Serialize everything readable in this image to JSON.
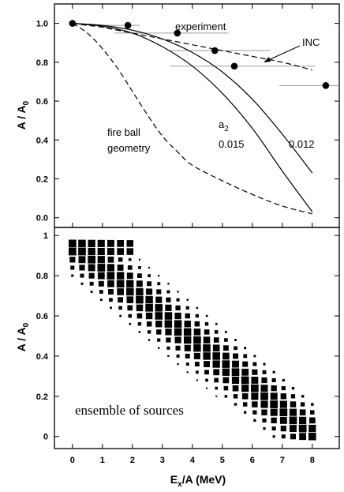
{
  "chart_data": [
    {
      "type": "line",
      "panel": "top",
      "xlim": [
        -0.6,
        8.9
      ],
      "ylim": [
        -0.05,
        1.1
      ],
      "yticks": [
        "0.0",
        "0.2",
        "0.4",
        "0.6",
        "0.8",
        "1.0"
      ],
      "y_axis_label": {
        "main": "A / A",
        "sub": "0"
      },
      "experiment": {
        "label": "experiment",
        "points": [
          {
            "x": 0.0,
            "y": 1.0,
            "xerr": [
              0.0,
              0.0
            ]
          },
          {
            "x": 1.85,
            "y": 0.99,
            "xerr": [
              0.8,
              2.25
            ]
          },
          {
            "x": 3.5,
            "y": 0.95,
            "xerr": [
              1.4,
              5.2
            ]
          },
          {
            "x": 4.75,
            "y": 0.86,
            "xerr": [
              3.25,
              6.6
            ]
          },
          {
            "x": 5.4,
            "y": 0.78,
            "xerr": [
              3.25,
              8.1
            ]
          },
          {
            "x": 8.45,
            "y": 0.68,
            "xerr": [
              6.9,
              8.9
            ]
          }
        ]
      },
      "series": [
        {
          "style": "dashed",
          "label": "INC",
          "x": [
            0,
            0.5,
            1,
            2,
            3,
            4,
            5,
            6,
            7,
            8
          ],
          "y": [
            1.0,
            0.99,
            0.98,
            0.95,
            0.92,
            0.89,
            0.86,
            0.83,
            0.8,
            0.76
          ]
        },
        {
          "style": "solid",
          "label": "0.012",
          "x": [
            0,
            1,
            2,
            3,
            4,
            5,
            6,
            7,
            8
          ],
          "y": [
            1.0,
            0.99,
            0.965,
            0.92,
            0.85,
            0.75,
            0.61,
            0.43,
            0.23
          ]
        },
        {
          "style": "solid",
          "label": "0.015",
          "x": [
            0,
            1,
            2,
            3,
            4,
            5,
            6,
            7,
            8
          ],
          "y": [
            1.0,
            0.985,
            0.95,
            0.88,
            0.78,
            0.64,
            0.46,
            0.24,
            0.03
          ]
        },
        {
          "style": "dashed",
          "label": "fire ball geometry",
          "x": [
            0,
            0.5,
            1,
            1.5,
            2,
            2.5,
            3,
            3.5,
            4,
            5,
            6,
            7,
            8
          ],
          "y": [
            1.0,
            0.95,
            0.87,
            0.77,
            0.65,
            0.53,
            0.42,
            0.34,
            0.27,
            0.19,
            0.12,
            0.06,
            0.02
          ]
        }
      ],
      "annotations": {
        "experiment": "experiment",
        "inc": "INC",
        "a2_main": "a",
        "a2_sub": "2",
        "val_0015": "0.015",
        "val_0012": "0.012",
        "fireball_1": "fire ball",
        "fireball_2": "geometry"
      }
    },
    {
      "type": "heatmap",
      "panel": "bottom",
      "xlim": [
        -0.6,
        8.9
      ],
      "ylim": [
        -0.06,
        1.04
      ],
      "xticks": [
        "0",
        "1",
        "2",
        "3",
        "4",
        "5",
        "6",
        "7",
        "8"
      ],
      "yticks": [
        "0",
        "0.2",
        "0.4",
        "0.6",
        "0.8",
        "1"
      ],
      "x_axis_label": {
        "main": "E",
        "sub": "x",
        "rest": "/A (MeV)"
      },
      "y_axis_label": {
        "main": "A / A",
        "sub": "0"
      },
      "annotation": "ensemble of sources",
      "x_bins": [
        0.0,
        0.32,
        0.64,
        0.96,
        1.28,
        1.6,
        1.92,
        2.24,
        2.56,
        2.88,
        3.2,
        3.52,
        3.84,
        4.16,
        4.48,
        4.8,
        5.12,
        5.44,
        5.76,
        6.08,
        6.4,
        6.72,
        7.04,
        7.36,
        7.68,
        8.0
      ],
      "y_bins": [
        0.0,
        0.04,
        0.08,
        0.12,
        0.16,
        0.2,
        0.24,
        0.28,
        0.32,
        0.36,
        0.4,
        0.44,
        0.48,
        0.52,
        0.56,
        0.6,
        0.64,
        0.68,
        0.72,
        0.76,
        0.8,
        0.84,
        0.88,
        0.92,
        0.96
      ],
      "diagonal": {
        "center_at_x0": 0.96,
        "slope": -0.119,
        "width": 0.075,
        "max_intensity": 1.0
      }
    }
  ]
}
